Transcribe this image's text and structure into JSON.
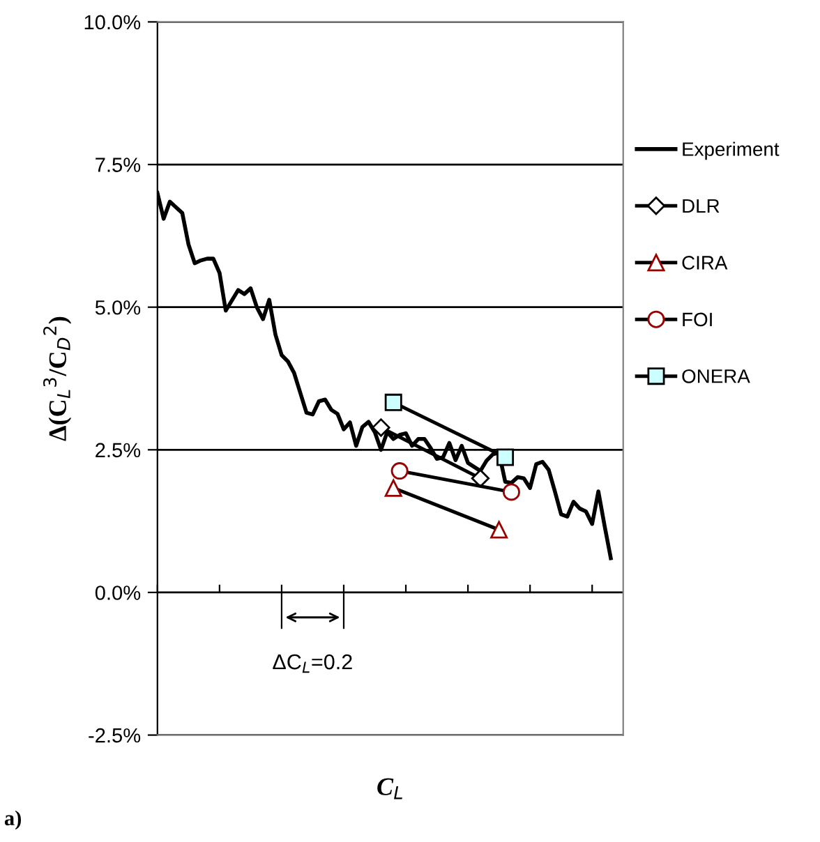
{
  "chart_data": {
    "type": "line",
    "xlabel": "C$_{L}$",
    "ylabel": "Δ(C$_{L}$$^{3}$/C$_{D}$$^{2}$)",
    "categories": [
      null,
      null,
      null,
      null,
      null,
      null,
      null,
      null,
      null,
      null,
      null,
      null,
      null,
      null,
      null,
      null,
      null,
      null,
      null,
      null,
      null,
      null,
      null,
      null,
      null,
      null,
      null,
      null,
      null,
      null,
      null,
      null,
      null,
      null,
      null,
      null,
      null,
      null,
      null,
      null,
      null,
      null,
      null,
      null,
      null,
      null,
      null,
      null,
      null,
      null,
      null,
      null,
      null,
      null,
      null,
      null,
      null,
      null,
      null,
      null,
      null,
      null,
      null,
      null,
      null,
      null,
      null,
      null,
      null,
      null,
      null,
      null,
      null,
      null,
      null,
      null
    ],
    "ylim": [
      -2.5,
      10
    ],
    "yticks": [
      {
        "value": -2.5,
        "label": "-2.5%"
      },
      {
        "value": 0,
        "label": "0.0%"
      },
      {
        "value": 2.5,
        "label": "2.5%"
      },
      {
        "value": 5,
        "label": "5.0%"
      },
      {
        "value": 7.5,
        "label": "7.5%"
      },
      {
        "value": 10,
        "label": "10.0%"
      }
    ],
    "grid": "y",
    "legend": "right",
    "series": [
      {
        "name": "Experiment",
        "color": "#000000",
        "marker": "none",
        "values": [
          7.0,
          6.55,
          6.85,
          6.75,
          6.65,
          6.1,
          5.77,
          5.82,
          5.85,
          5.85,
          5.6,
          4.94,
          5.12,
          5.3,
          5.23,
          5.33,
          5.0,
          4.79,
          5.13,
          4.52,
          4.16,
          4.05,
          3.85,
          3.5,
          3.15,
          3.12,
          3.35,
          3.38,
          3.2,
          3.13,
          2.86,
          2.98,
          2.57,
          2.9,
          2.99,
          2.81,
          2.5,
          2.81,
          2.69,
          2.76,
          2.79,
          2.57,
          2.69,
          2.69,
          2.53,
          2.34,
          2.37,
          2.62,
          2.32,
          2.57,
          2.27,
          2.2,
          2.13,
          2.31,
          2.42,
          2.45,
          1.94,
          1.92,
          2.02,
          2.0,
          1.83,
          2.25,
          2.29,
          2.15,
          1.77,
          1.37,
          1.33,
          1.59,
          1.47,
          1.42,
          1.2,
          1.77,
          1.17,
          0.6,
          null,
          null
        ]
      },
      {
        "name": "DLR",
        "color": "#000000",
        "marker": "diamond",
        "values": [
          null,
          null,
          null,
          null,
          null,
          null,
          null,
          null,
          null,
          null,
          null,
          null,
          null,
          null,
          null,
          null,
          null,
          null,
          null,
          null,
          null,
          null,
          null,
          null,
          null,
          null,
          null,
          null,
          null,
          null,
          null,
          null,
          null,
          null,
          null,
          null,
          2.89,
          null,
          null,
          null,
          null,
          null,
          null,
          null,
          null,
          null,
          null,
          null,
          null,
          null,
          null,
          null,
          2.0,
          null,
          null,
          null,
          null,
          null,
          null,
          null,
          null,
          null,
          null,
          null,
          null,
          null,
          null,
          null,
          null,
          null,
          null,
          null,
          null,
          null,
          null,
          null
        ]
      },
      {
        "name": "CIRA",
        "color": "#990000",
        "marker": "triangle",
        "values": [
          null,
          null,
          null,
          null,
          null,
          null,
          null,
          null,
          null,
          null,
          null,
          null,
          null,
          null,
          null,
          null,
          null,
          null,
          null,
          null,
          null,
          null,
          null,
          null,
          null,
          null,
          null,
          null,
          null,
          null,
          null,
          null,
          null,
          null,
          null,
          null,
          null,
          null,
          1.83,
          null,
          null,
          null,
          null,
          null,
          null,
          null,
          null,
          null,
          null,
          null,
          null,
          null,
          null,
          null,
          null,
          1.1,
          null,
          null,
          null,
          null,
          null,
          null,
          null,
          null,
          null,
          null,
          null,
          null,
          null,
          null,
          null,
          null,
          null,
          null,
          null,
          null
        ]
      },
      {
        "name": "FOI",
        "color": "#990000",
        "marker": "circle",
        "values": [
          null,
          null,
          null,
          null,
          null,
          null,
          null,
          null,
          null,
          null,
          null,
          null,
          null,
          null,
          null,
          null,
          null,
          null,
          null,
          null,
          null,
          null,
          null,
          null,
          null,
          null,
          null,
          null,
          null,
          null,
          null,
          null,
          null,
          null,
          null,
          null,
          null,
          null,
          null,
          2.13,
          null,
          null,
          null,
          null,
          null,
          null,
          null,
          null,
          null,
          null,
          null,
          null,
          null,
          null,
          null,
          null,
          null,
          1.76,
          null,
          null,
          null,
          null,
          null,
          null,
          null,
          null,
          null,
          null,
          null,
          null,
          null,
          null,
          null,
          null,
          null,
          null
        ]
      },
      {
        "name": "ONERA",
        "color": "#ccffff",
        "marker": "square",
        "values": [
          null,
          null,
          null,
          null,
          null,
          null,
          null,
          null,
          null,
          null,
          null,
          null,
          null,
          null,
          null,
          null,
          null,
          null,
          null,
          null,
          null,
          null,
          null,
          null,
          null,
          null,
          null,
          null,
          null,
          null,
          null,
          null,
          null,
          null,
          null,
          null,
          null,
          null,
          3.33,
          null,
          null,
          null,
          null,
          null,
          null,
          null,
          null,
          null,
          null,
          null,
          null,
          null,
          null,
          null,
          null,
          null,
          2.37,
          null,
          null,
          null,
          null,
          null,
          null,
          null,
          null,
          null,
          null,
          null,
          null,
          null,
          null,
          null,
          null,
          null,
          null,
          null
        ]
      }
    ],
    "annotations": [
      "ΔC$_{L}$=0.2",
      "a)"
    ]
  }
}
